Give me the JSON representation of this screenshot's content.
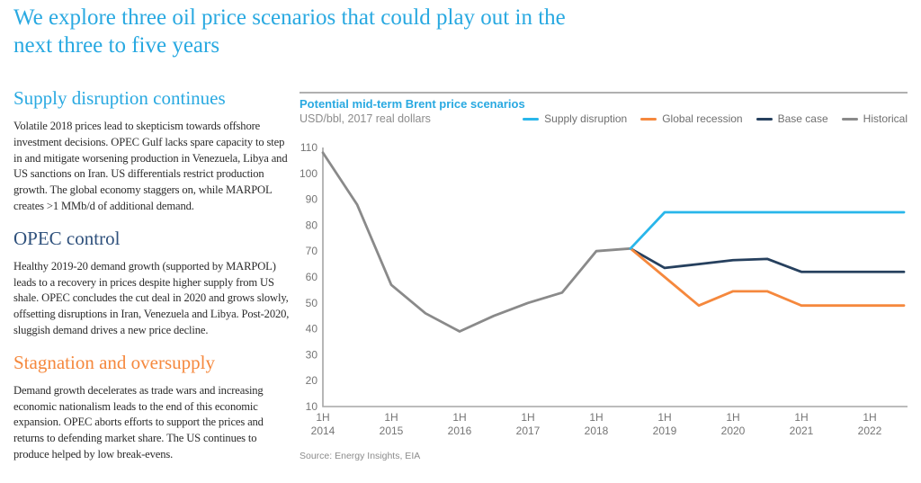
{
  "page": {
    "title": "We explore three oil price scenarios that could play out in the next three to five years"
  },
  "colors": {
    "accent_blue": "#29A9E1",
    "heading_navy": "#2F517C",
    "heading_orange": "#F5883D",
    "body_text": "#2B2B2B",
    "axis_text": "#757575",
    "legend_text": "#6F6F6F",
    "muted_text": "#8C8C8C",
    "rule": "#B0B0B0",
    "axis_line": "#A5A5A5"
  },
  "sections": [
    {
      "heading": "Supply disruption continues",
      "body": "Volatile 2018 prices lead to skepticism towards offshore investment decisions. OPEC Gulf lacks spare capacity to step in and mitigate worsening production in Venezuela, Libya and US sanctions on Iran. US differentials restrict production growth. The global economy staggers on, while MARPOL creates >1 MMb/d of additional demand."
    },
    {
      "heading": "OPEC control",
      "body": "Healthy 2019-20 demand growth (supported by MARPOL) leads to a recovery in prices despite higher supply from US shale. OPEC concludes the cut deal in 2020 and grows slowly, offsetting disruptions in Iran, Venezuela and Libya. Post-2020, sluggish demand drives a new price decline."
    },
    {
      "heading": "Stagnation and oversupply",
      "body": "Demand growth decelerates as trade wars and increasing economic nationalism leads to the end of this economic expansion. OPEC aborts efforts to support the prices and returns to defending market share. The US continues to produce helped by low break-evens."
    }
  ],
  "chart": {
    "title": "Potential mid-term Brent price scenarios",
    "subtitle": "USD/bbl, 2017 real dollars",
    "source": "Source: Energy Insights, EIA"
  },
  "chart_data": {
    "type": "line",
    "title": "Potential mid-term Brent price scenarios",
    "ylabel": "USD/bbl, 2017 real dollars",
    "ylim": [
      10,
      110
    ],
    "yticks": [
      110,
      100,
      90,
      80,
      70,
      60,
      50,
      40,
      30,
      20,
      10
    ],
    "grid": false,
    "legend_position": "top-right",
    "categories": [
      "1H 2014",
      "2H 2014",
      "1H 2015",
      "2H 2015",
      "1H 2016",
      "2H 2016",
      "1H 2017",
      "2H 2017",
      "1H 2018",
      "2H 2018",
      "1H 2019",
      "2H 2019",
      "1H 2020",
      "2H 2020",
      "1H 2021",
      "2H 2021",
      "1H 2022",
      "2H 2022"
    ],
    "xtick_every": 2,
    "series": [
      {
        "name": "Supply disruption",
        "color": "#29B6EA",
        "values": [
          null,
          null,
          null,
          null,
          null,
          null,
          null,
          null,
          null,
          71,
          85,
          85,
          85,
          85,
          85,
          85,
          85,
          85
        ]
      },
      {
        "name": "Global recession",
        "color": "#F5883D",
        "values": [
          null,
          null,
          null,
          null,
          null,
          null,
          null,
          null,
          null,
          71,
          60,
          49,
          54.5,
          54.5,
          49,
          49,
          49,
          49
        ]
      },
      {
        "name": "Base case",
        "color": "#26405E",
        "values": [
          null,
          null,
          null,
          null,
          null,
          null,
          null,
          null,
          null,
          71,
          63.5,
          65,
          66.5,
          67,
          62,
          62,
          62,
          62
        ]
      },
      {
        "name": "Historical",
        "color": "#8A8A8A",
        "values": [
          108,
          88,
          57,
          46,
          39,
          45,
          50,
          54,
          70,
          71,
          null,
          null,
          null,
          null,
          null,
          null,
          null,
          null
        ]
      }
    ]
  }
}
